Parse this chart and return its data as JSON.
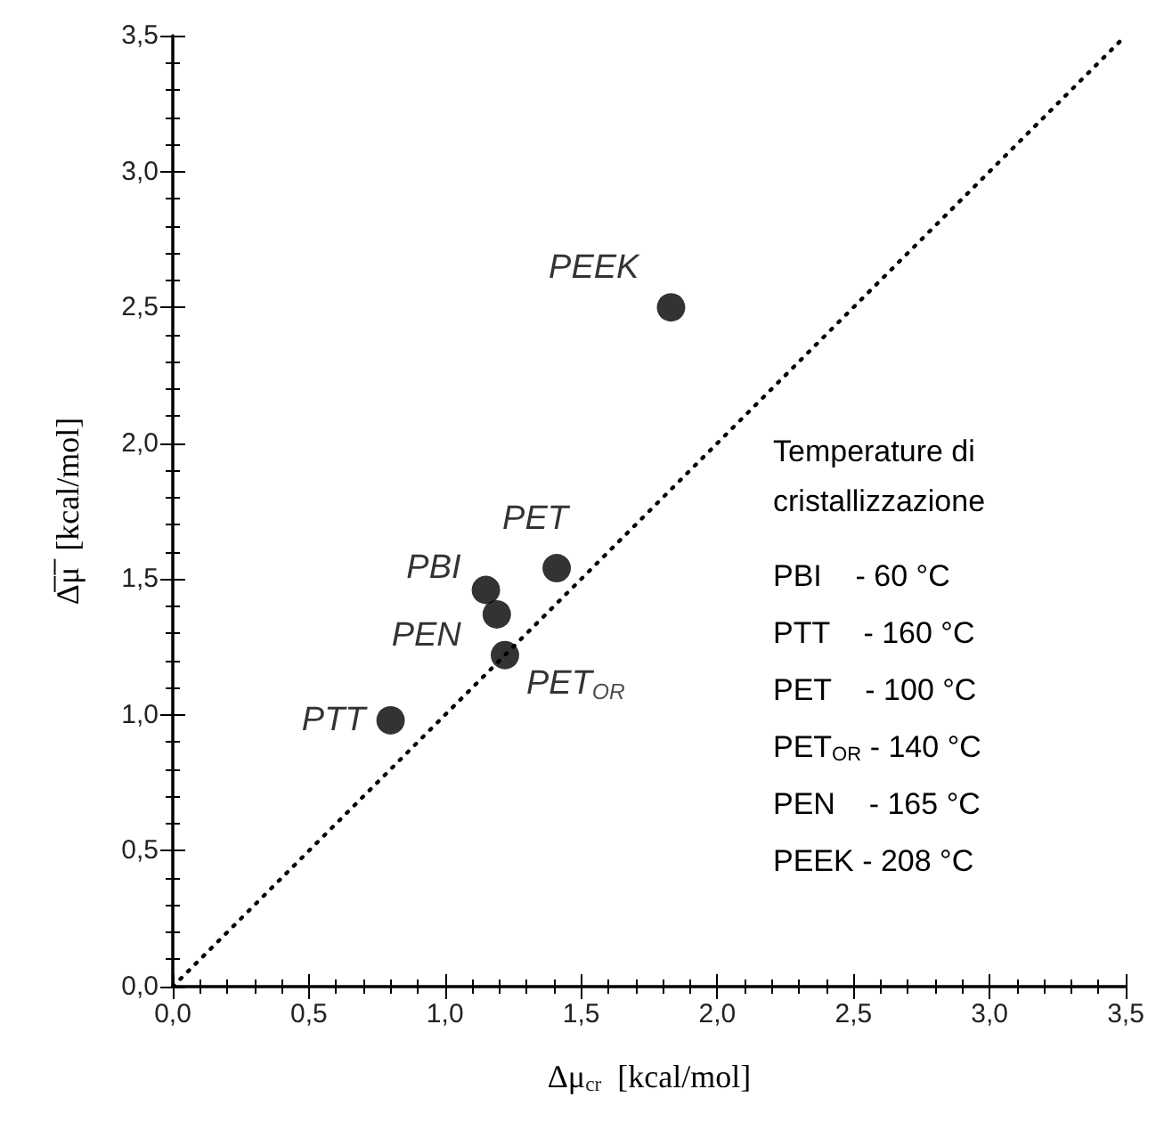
{
  "chart_data": {
    "type": "scatter",
    "xlabel": "Δμ$_{cr}$  [kcal/mol]",
    "ylabel": "Δ̅μ̅  [kcal/mol]",
    "xlim": [
      0,
      3.5
    ],
    "ylim": [
      0,
      3.5
    ],
    "xticks": [
      {
        "value": 0,
        "label": "0,0"
      },
      {
        "value": 0.5,
        "label": "0,5"
      },
      {
        "value": 1,
        "label": "1,0"
      },
      {
        "value": 1.5,
        "label": "1,5"
      },
      {
        "value": 2,
        "label": "2,0"
      },
      {
        "value": 2.5,
        "label": "2,5"
      },
      {
        "value": 3,
        "label": "3,0"
      },
      {
        "value": 3.5,
        "label": "3,5"
      }
    ],
    "yticks": [
      {
        "value": 0,
        "label": "0,0"
      },
      {
        "value": 0.5,
        "label": "0,5"
      },
      {
        "value": 1,
        "label": "1,0"
      },
      {
        "value": 1.5,
        "label": "1,5"
      },
      {
        "value": 2,
        "label": "2,0"
      },
      {
        "value": 2.5,
        "label": "2,5"
      },
      {
        "value": 3,
        "label": "3,0"
      },
      {
        "value": 3.5,
        "label": "3,5"
      }
    ],
    "grid": false,
    "legend": false,
    "marker": "circle",
    "series": [
      {
        "type": "line",
        "color": "#000000",
        "x": [
          0,
          3.5
        ],
        "values": [
          0,
          3.5
        ],
        "line_style": "dotted",
        "marker": "none"
      },
      {
        "name": "PEEK",
        "color": "#000000",
        "x": [
          1.83
        ],
        "values": [
          2.5
        ]
      },
      {
        "name": "PET",
        "color": "#000000",
        "x": [
          1.41
        ],
        "values": [
          1.54
        ]
      },
      {
        "name": "PBI",
        "color": "#000000",
        "x": [
          1.15
        ],
        "values": [
          1.46
        ]
      },
      {
        "name": "PEN",
        "color": "#000000",
        "x": [
          1.19
        ],
        "values": [
          1.37
        ]
      },
      {
        "name": "PET$_{OR}$",
        "color": "#000000",
        "x": [
          1.22
        ],
        "values": [
          1.22
        ]
      },
      {
        "name": "PTT",
        "color": "#000000",
        "x": [
          0.8
        ],
        "values": [
          0.98
        ]
      }
    ],
    "annotations": [
      "Temperature di",
      "cristallizzazione",
      "PBI    - 60 °C",
      "PTT    - 160 °C",
      "PET    - 100 °C",
      "PET$_{OR}$ - 140 °C",
      "PEN    - 165 °C",
      "PEEK - 208 °C"
    ]
  }
}
